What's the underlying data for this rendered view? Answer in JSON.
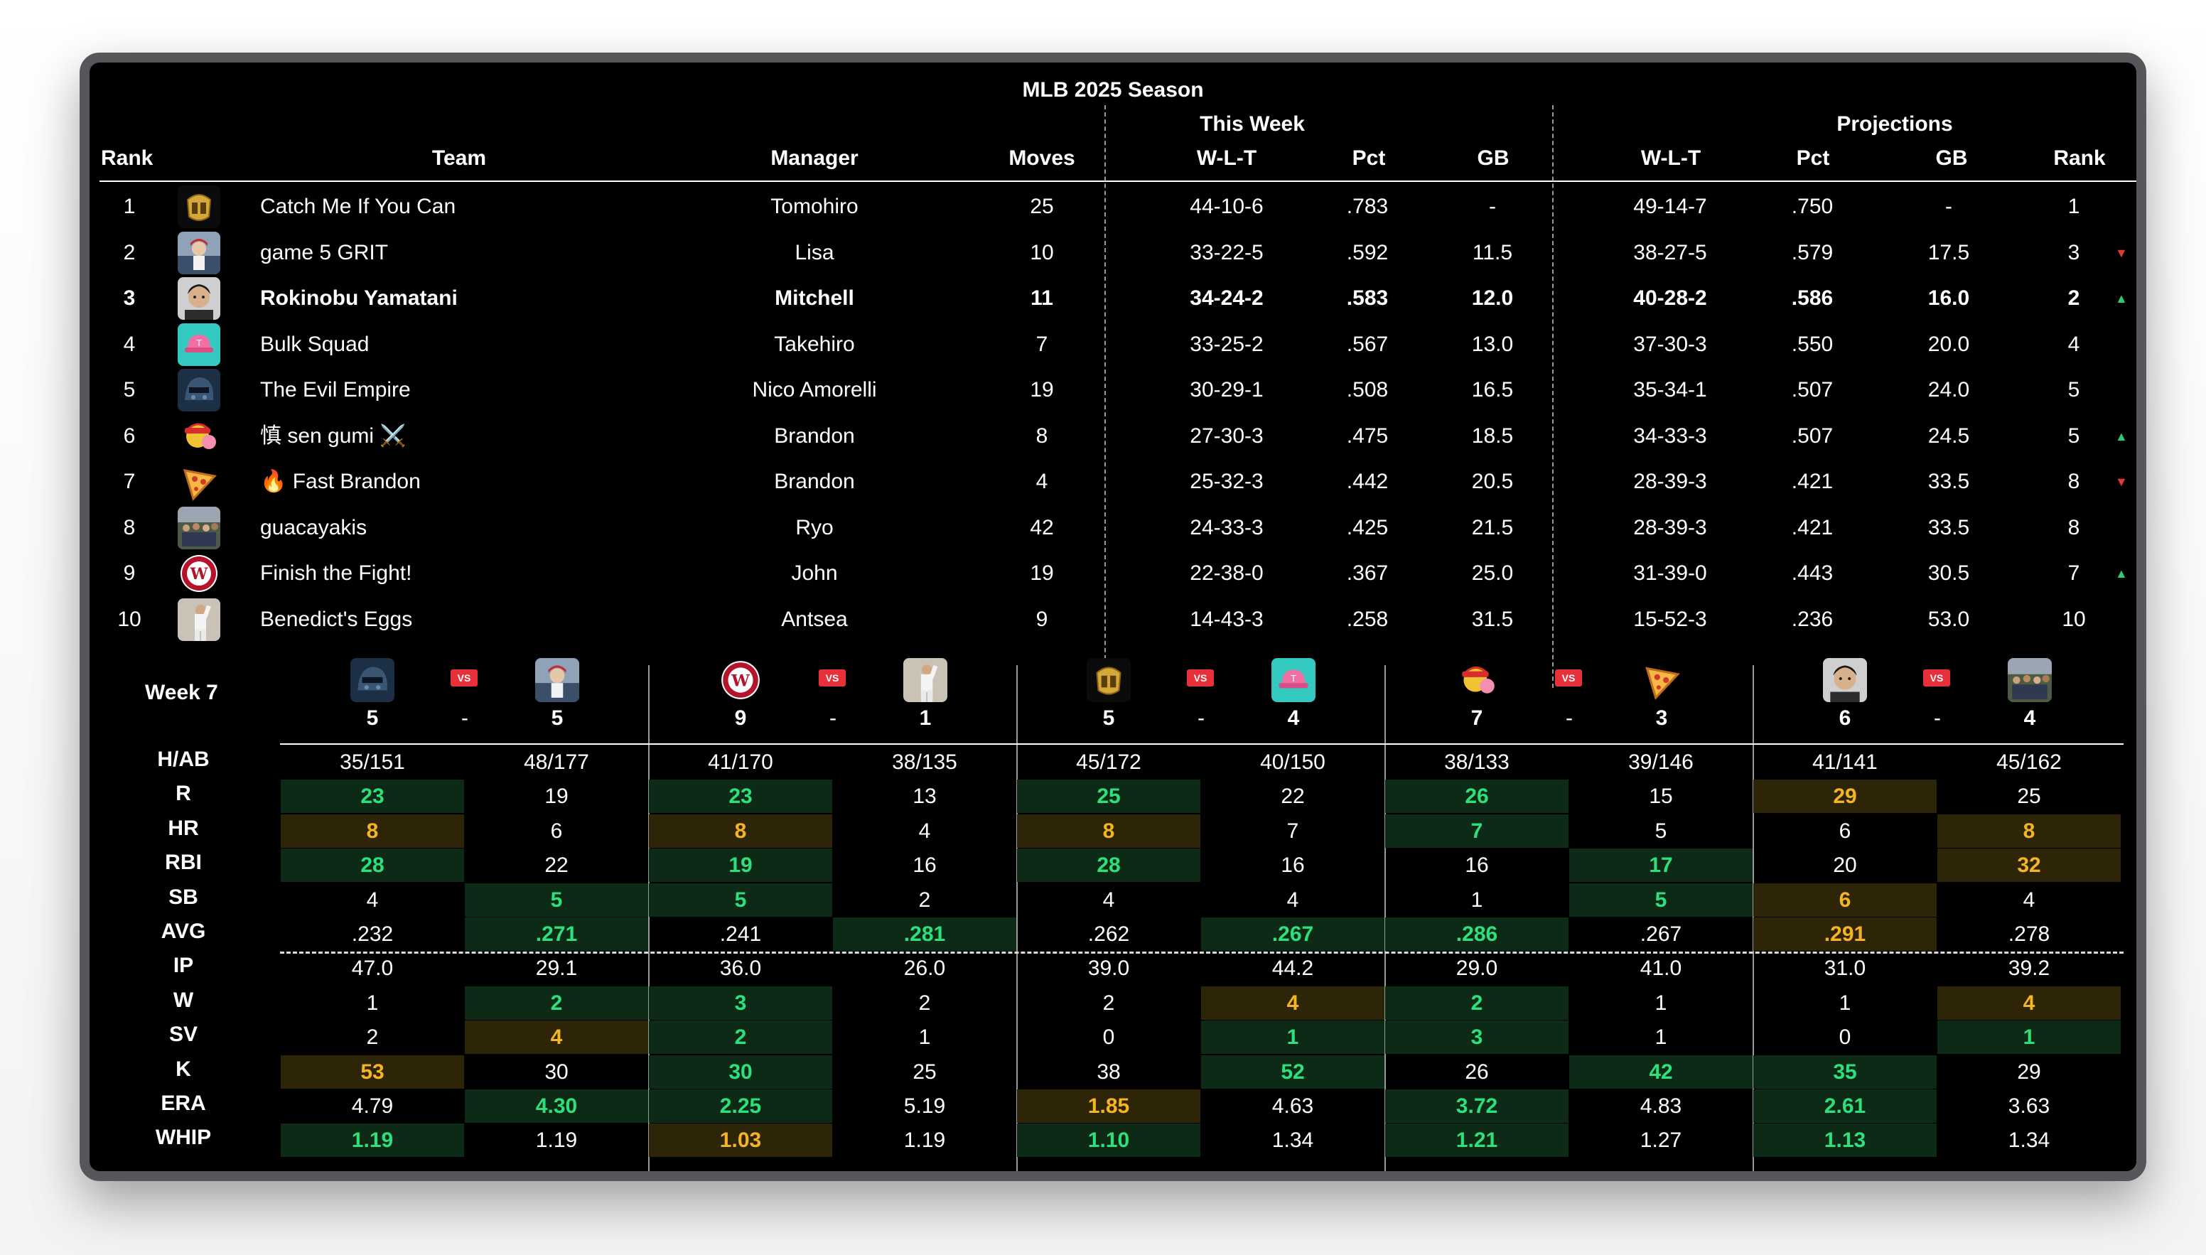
{
  "title": "MLB 2025 Season",
  "groups": {
    "this_week": "This Week",
    "projections": "Projections"
  },
  "headers": {
    "rank": "Rank",
    "team": "Team",
    "manager": "Manager",
    "moves": "Moves",
    "tw_wlt": "W-L-T",
    "tw_pct": "Pct",
    "tw_gb": "GB",
    "p_wlt": "W-L-T",
    "p_pct": "Pct",
    "p_gb": "GB",
    "p_rank": "Rank"
  },
  "standings": [
    {
      "rank": "1",
      "team": "Catch Me If You Can",
      "manager": "Tomohiro",
      "moves": "25",
      "wlt": "44-10-6",
      "pct": ".783",
      "gb": "-",
      "p_wlt": "49-14-7",
      "p_pct": ".750",
      "p_gb": "-",
      "p_rank": "1",
      "trend": "",
      "avatar": "gold-helmet-icon",
      "bold": false
    },
    {
      "rank": "2",
      "team": "game 5 GRIT",
      "manager": "Lisa",
      "moves": "10",
      "wlt": "33-22-5",
      "pct": ".592",
      "gb": "11.5",
      "p_wlt": "38-27-5",
      "p_pct": ".579",
      "p_gb": "17.5",
      "p_rank": "3",
      "trend": "▼",
      "avatar": "player-photo-icon",
      "bold": false
    },
    {
      "rank": "3",
      "team": "Rokinobu Yamatani",
      "manager": "Mitchell",
      "moves": "11",
      "wlt": "34-24-2",
      "pct": ".583",
      "gb": "12.0",
      "p_wlt": "40-28-2",
      "p_pct": ".586",
      "p_gb": "16.0",
      "p_rank": "2",
      "trend": "▲",
      "avatar": "face-photo-icon",
      "bold": true
    },
    {
      "rank": "4",
      "team": "Bulk Squad",
      "manager": "Takehiro",
      "moves": "7",
      "wlt": "33-25-2",
      "pct": ".567",
      "gb": "13.0",
      "p_wlt": "37-30-3",
      "p_pct": ".550",
      "p_gb": "20.0",
      "p_rank": "4",
      "trend": "",
      "avatar": "pink-cap-icon",
      "bold": false
    },
    {
      "rank": "5",
      "team": "The Evil Empire",
      "manager": "Nico Amorelli",
      "moves": "19",
      "wlt": "30-29-1",
      "pct": ".508",
      "gb": "16.5",
      "p_wlt": "35-34-1",
      "p_pct": ".507",
      "p_gb": "24.0",
      "p_rank": "5",
      "trend": "",
      "avatar": "dark-helmet-icon",
      "bold": false
    },
    {
      "rank": "6",
      "team": "慎 sen gumi ⚔️",
      "manager": "Brandon",
      "moves": "8",
      "wlt": "27-30-3",
      "pct": ".475",
      "gb": "18.5",
      "p_wlt": "34-33-3",
      "p_pct": ".507",
      "p_gb": "24.5",
      "p_rank": "5",
      "trend": "▲",
      "avatar": "bubblegum-character-icon",
      "bold": false
    },
    {
      "rank": "7",
      "team": "🔥 Fast Brandon",
      "manager": "Brandon",
      "moves": "4",
      "wlt": "25-32-3",
      "pct": ".442",
      "gb": "20.5",
      "p_wlt": "28-39-3",
      "p_pct": ".421",
      "p_gb": "33.5",
      "p_rank": "8",
      "trend": "▼",
      "avatar": "pizza-slice-icon",
      "bold": false
    },
    {
      "rank": "8",
      "team": "guacayakis",
      "manager": "Ryo",
      "moves": "42",
      "wlt": "24-33-3",
      "pct": ".425",
      "gb": "21.5",
      "p_wlt": "28-39-3",
      "p_pct": ".421",
      "p_gb": "33.5",
      "p_rank": "8",
      "trend": "",
      "avatar": "crowd-photo-icon",
      "bold": false
    },
    {
      "rank": "9",
      "team": "Finish the Fight!",
      "manager": "John",
      "moves": "19",
      "wlt": "22-38-0",
      "pct": ".367",
      "gb": "25.0",
      "p_wlt": "31-39-0",
      "p_pct": ".443",
      "p_gb": "30.5",
      "p_rank": "7",
      "trend": "▲",
      "avatar": "nationals-logo-icon",
      "bold": false
    },
    {
      "rank": "10",
      "team": "Benedict's Eggs",
      "manager": "Antsea",
      "moves": "9",
      "wlt": "14-43-3",
      "pct": ".258",
      "gb": "31.5",
      "p_wlt": "15-52-3",
      "p_pct": ".236",
      "p_gb": "53.0",
      "p_rank": "10",
      "trend": "",
      "avatar": "player-throw-photo-icon",
      "bold": false
    }
  ],
  "week": {
    "label": "Week 7",
    "vs_label": "VS",
    "dash": "-",
    "stat_labels": [
      "H/AB",
      "R",
      "HR",
      "RBI",
      "SB",
      "AVG",
      "IP",
      "W",
      "SV",
      "K",
      "ERA",
      "WHIP"
    ],
    "matchups": [
      {
        "home": {
          "avatar": "dark-helmet-icon",
          "score": "5"
        },
        "away": {
          "avatar": "player-photo-icon",
          "score": "5"
        },
        "home_stats": [
          [
            "35/151",
            ""
          ],
          [
            "23",
            "g"
          ],
          [
            "8",
            "y"
          ],
          [
            "28",
            "g"
          ],
          [
            "4",
            ""
          ],
          [
            ".232",
            ""
          ],
          [
            "47.0",
            ""
          ],
          [
            "1",
            ""
          ],
          [
            "2",
            ""
          ],
          [
            "53",
            "y"
          ],
          [
            "4.79",
            ""
          ],
          [
            "1.19",
            "g"
          ]
        ],
        "away_stats": [
          [
            "48/177",
            ""
          ],
          [
            "19",
            ""
          ],
          [
            "6",
            ""
          ],
          [
            "22",
            ""
          ],
          [
            "5",
            "g"
          ],
          [
            ".271",
            "g"
          ],
          [
            "29.1",
            ""
          ],
          [
            "2",
            "g"
          ],
          [
            "4",
            "y"
          ],
          [
            "30",
            ""
          ],
          [
            "4.30",
            "g"
          ],
          [
            "1.19",
            ""
          ]
        ]
      },
      {
        "home": {
          "avatar": "nationals-logo-icon",
          "score": "9"
        },
        "away": {
          "avatar": "player-throw-photo-icon",
          "score": "1"
        },
        "home_stats": [
          [
            "41/170",
            ""
          ],
          [
            "23",
            "g"
          ],
          [
            "8",
            "y"
          ],
          [
            "19",
            "g"
          ],
          [
            "5",
            "g"
          ],
          [
            ".241",
            ""
          ],
          [
            "36.0",
            ""
          ],
          [
            "3",
            "g"
          ],
          [
            "2",
            "g"
          ],
          [
            "30",
            "g"
          ],
          [
            "2.25",
            "g"
          ],
          [
            "1.03",
            "y"
          ]
        ],
        "away_stats": [
          [
            "38/135",
            ""
          ],
          [
            "13",
            ""
          ],
          [
            "4",
            ""
          ],
          [
            "16",
            ""
          ],
          [
            "2",
            ""
          ],
          [
            ".281",
            "g"
          ],
          [
            "26.0",
            ""
          ],
          [
            "2",
            ""
          ],
          [
            "1",
            ""
          ],
          [
            "25",
            ""
          ],
          [
            "5.19",
            ""
          ],
          [
            "1.19",
            ""
          ]
        ]
      },
      {
        "home": {
          "avatar": "gold-helmet-icon",
          "score": "5"
        },
        "away": {
          "avatar": "pink-cap-icon",
          "score": "4"
        },
        "home_stats": [
          [
            "45/172",
            ""
          ],
          [
            "25",
            "g"
          ],
          [
            "8",
            "y"
          ],
          [
            "28",
            "g"
          ],
          [
            "4",
            ""
          ],
          [
            ".262",
            ""
          ],
          [
            "39.0",
            ""
          ],
          [
            "2",
            ""
          ],
          [
            "0",
            ""
          ],
          [
            "38",
            ""
          ],
          [
            "1.85",
            "y"
          ],
          [
            "1.10",
            "g"
          ]
        ],
        "away_stats": [
          [
            "40/150",
            ""
          ],
          [
            "22",
            ""
          ],
          [
            "7",
            ""
          ],
          [
            "16",
            ""
          ],
          [
            "4",
            ""
          ],
          [
            ".267",
            "g"
          ],
          [
            "44.2",
            ""
          ],
          [
            "4",
            "y"
          ],
          [
            "1",
            "g"
          ],
          [
            "52",
            "g"
          ],
          [
            "4.63",
            ""
          ],
          [
            "1.34",
            ""
          ]
        ]
      },
      {
        "home": {
          "avatar": "bubblegum-character-icon",
          "score": "7"
        },
        "away": {
          "avatar": "pizza-slice-icon",
          "score": "3"
        },
        "home_stats": [
          [
            "38/133",
            ""
          ],
          [
            "26",
            "g"
          ],
          [
            "7",
            "g"
          ],
          [
            "16",
            ""
          ],
          [
            "1",
            ""
          ],
          [
            ".286",
            "g"
          ],
          [
            "29.0",
            ""
          ],
          [
            "2",
            "g"
          ],
          [
            "3",
            "g"
          ],
          [
            "26",
            ""
          ],
          [
            "3.72",
            "g"
          ],
          [
            "1.21",
            "g"
          ]
        ],
        "away_stats": [
          [
            "39/146",
            ""
          ],
          [
            "15",
            ""
          ],
          [
            "5",
            ""
          ],
          [
            "17",
            "g"
          ],
          [
            "5",
            "g"
          ],
          [
            ".267",
            ""
          ],
          [
            "41.0",
            ""
          ],
          [
            "1",
            ""
          ],
          [
            "1",
            ""
          ],
          [
            "42",
            "g"
          ],
          [
            "4.83",
            ""
          ],
          [
            "1.27",
            ""
          ]
        ]
      },
      {
        "home": {
          "avatar": "face-photo-icon",
          "score": "6"
        },
        "away": {
          "avatar": "crowd-photo-icon",
          "score": "4"
        },
        "home_stats": [
          [
            "41/141",
            ""
          ],
          [
            "29",
            "y"
          ],
          [
            "6",
            ""
          ],
          [
            "20",
            ""
          ],
          [
            "6",
            "y"
          ],
          [
            ".291",
            "y"
          ],
          [
            "31.0",
            ""
          ],
          [
            "1",
            ""
          ],
          [
            "0",
            ""
          ],
          [
            "35",
            "g"
          ],
          [
            "2.61",
            "g"
          ],
          [
            "1.13",
            "g"
          ]
        ],
        "away_stats": [
          [
            "45/162",
            ""
          ],
          [
            "25",
            ""
          ],
          [
            "8",
            "y"
          ],
          [
            "32",
            "y"
          ],
          [
            "4",
            ""
          ],
          [
            ".278",
            ""
          ],
          [
            "39.2",
            ""
          ],
          [
            "4",
            "y"
          ],
          [
            "1",
            "g"
          ],
          [
            "29",
            ""
          ],
          [
            "3.63",
            ""
          ],
          [
            "1.34",
            ""
          ]
        ]
      }
    ]
  },
  "colors": {
    "win_green": "#2ee07b",
    "win_green_bg": "#0d2a16",
    "tie_yellow": "#f5b522",
    "tie_yellow_bg": "#2e2408",
    "up": "#2ecc71",
    "down": "#e53935",
    "vs_badge": "#e8303a"
  }
}
